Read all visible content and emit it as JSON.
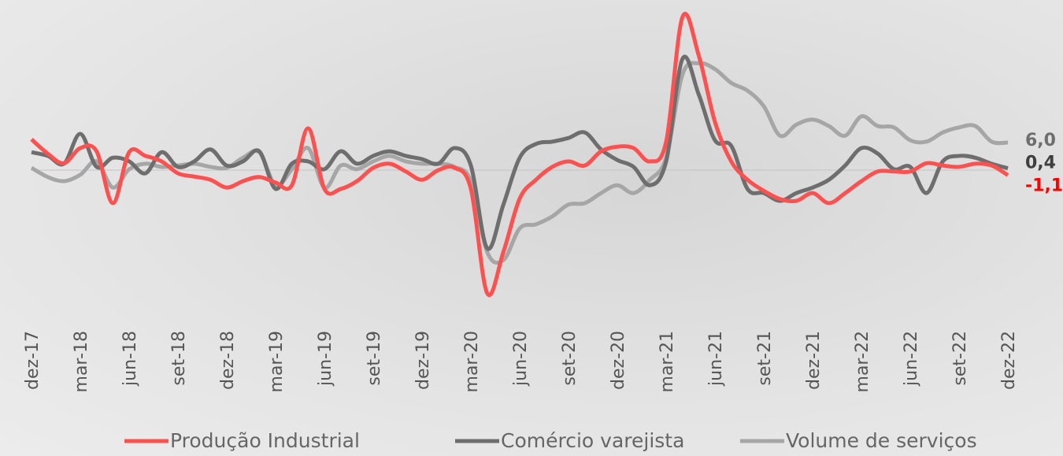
{
  "chart_data": {
    "type": "line",
    "categories": [
      "dez-17",
      null,
      null,
      "mar-18",
      null,
      null,
      "jun-18",
      null,
      null,
      "set-18",
      null,
      null,
      "dez-18",
      null,
      null,
      "mar-19",
      null,
      null,
      "jun-19",
      null,
      null,
      "set-19",
      null,
      null,
      "dez-19",
      null,
      null,
      "mar-20",
      null,
      null,
      "jun-20",
      null,
      null,
      "set-20",
      null,
      null,
      "dez-20",
      null,
      null,
      "mar-21",
      null,
      null,
      "jun-21",
      null,
      null,
      "set-21",
      null,
      null,
      "dez-21",
      null,
      null,
      "mar-22",
      null,
      null,
      "jun-22",
      null,
      null,
      "set-22",
      null,
      null,
      "dez-22"
    ],
    "series": [
      {
        "name": "Produção Industrial",
        "color": "#ff5050",
        "values": [
          6.7,
          3.6,
          1.5,
          4.8,
          4.1,
          -7.2,
          3.9,
          3.1,
          1.9,
          -0.7,
          -1.4,
          -2.1,
          -3.8,
          -2.4,
          -1.5,
          -2.7,
          -3.3,
          9.1,
          -4.1,
          -4.1,
          -2.4,
          0.5,
          1.4,
          -0.3,
          -2.1,
          0,
          0.5,
          -4.1,
          -26.8,
          -17.8,
          -6.2,
          -2.1,
          0.7,
          1.9,
          1.0,
          4.1,
          5.1,
          4.8,
          1.9,
          6.2,
          33.3,
          25.0,
          10.5,
          1.9,
          -2.1,
          -4.5,
          -6.3,
          -6.7,
          -5.0,
          -7.2,
          -5.0,
          -2.4,
          -0.3,
          -0.3,
          -0.3,
          1.5,
          1.0,
          0.7,
          1.4,
          1.0,
          -1.1
        ],
        "value_labels": {
          "60": "-1,1"
        }
      },
      {
        "name": "Comércio varejista",
        "color": "#6e6e6e",
        "values": [
          3.9,
          3.1,
          1.4,
          7.9,
          0.7,
          2.7,
          1.9,
          -0.7,
          3.9,
          0.7,
          1.9,
          4.5,
          1.0,
          1.9,
          4.1,
          -4.1,
          1.4,
          1.9,
          0.2,
          4.1,
          1.4,
          3.1,
          4.1,
          3.1,
          2.4,
          1.4,
          4.8,
          1.0,
          -17.0,
          -7.5,
          2.7,
          5.7,
          6.2,
          7.0,
          8.2,
          4.5,
          2.2,
          0.7,
          -3.3,
          1.9,
          24.2,
          16.5,
          6.5,
          5.3,
          -4.1,
          -5.0,
          -6.7,
          -5.0,
          -3.8,
          -2.1,
          1.0,
          4.8,
          3.6,
          0.2,
          0.7,
          -5.0,
          1.9,
          3.1,
          2.7,
          1.4,
          0.4
        ],
        "value_labels": {
          "60": "0,4"
        }
      },
      {
        "name": "Volume de serviços",
        "color": "#a6a6a6",
        "values": [
          0.5,
          -1.5,
          -2.4,
          -1.0,
          1.9,
          -3.8,
          0.2,
          1.4,
          0.7,
          1.0,
          1.4,
          0.7,
          0.5,
          2.7,
          3.9,
          -3.3,
          0.2,
          4.8,
          -3.8,
          1.0,
          0.2,
          1.9,
          3.1,
          1.9,
          1.4,
          1.4,
          0.7,
          -2.4,
          -17.8,
          -19.6,
          -12.7,
          -11.8,
          -10.1,
          -7.5,
          -7.2,
          -5.0,
          -3.3,
          -5.0,
          -2.1,
          2.7,
          20.8,
          23.3,
          22.0,
          19.0,
          17.3,
          13.9,
          7.5,
          9.9,
          11.0,
          9.6,
          7.5,
          11.7,
          9.6,
          9.3,
          6.5,
          6.2,
          8.2,
          9.3,
          9.6,
          6.2,
          6.0
        ],
        "value_labels": {
          "60": "6,0"
        }
      }
    ]
  }
}
